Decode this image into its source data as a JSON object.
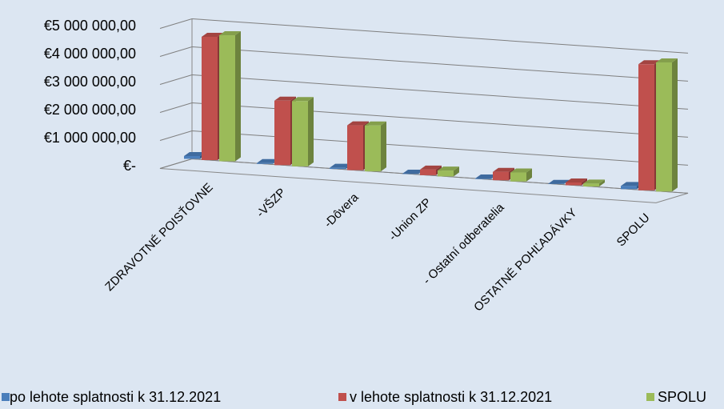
{
  "chart_data": {
    "type": "bar3d",
    "categories": [
      "ZDRAVOTNÉ POISŤOVNE",
      "-VŠZP",
      "-Dôvera",
      "-Union ZP",
      "- Ostatní odberatelia",
      "OSTATNÉ POHĽADÁVKY",
      "SPOLU"
    ],
    "series": [
      {
        "name": "po lehote splatnosti k 31.12.2021",
        "color": "#4a7ebb",
        "values": [
          100000,
          30000,
          40000,
          10000,
          20000,
          5000,
          110000
        ]
      },
      {
        "name": "v lehote splatnosti k 31.12.2021",
        "color": "#c0504d",
        "values": [
          4400000,
          2300000,
          1600000,
          200000,
          300000,
          100000,
          4500000
        ]
      },
      {
        "name": "SPOLU",
        "color": "#9bbb59",
        "values": [
          4500000,
          2330000,
          1640000,
          210000,
          320000,
          105000,
          4610000
        ]
      }
    ],
    "ylim": [
      0,
      5000000
    ],
    "yticks": [
      {
        "value": 0,
        "label": "€-"
      },
      {
        "value": 1000000,
        "label": "€1 000 000,00"
      },
      {
        "value": 2000000,
        "label": "€2 000 000,00"
      },
      {
        "value": 3000000,
        "label": "€3 000 000,00"
      },
      {
        "value": 4000000,
        "label": "€4 000 000,00"
      },
      {
        "value": 5000000,
        "label": "€5 000 000,00"
      }
    ],
    "grid": true,
    "legend": "bottom"
  }
}
